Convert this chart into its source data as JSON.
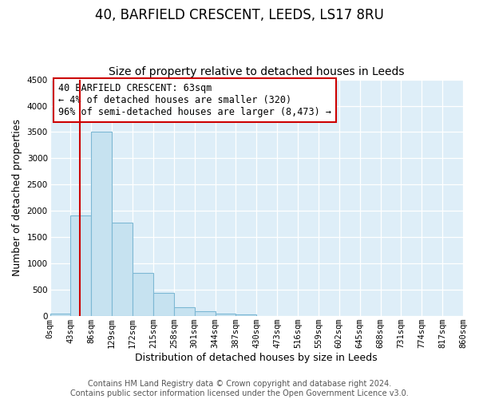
{
  "title": "40, BARFIELD CRESCENT, LEEDS, LS17 8RU",
  "subtitle": "Size of property relative to detached houses in Leeds",
  "xlabel": "Distribution of detached houses by size in Leeds",
  "ylabel": "Number of detached properties",
  "bin_edges": [
    0,
    43,
    86,
    129,
    172,
    215,
    258,
    301,
    344,
    387,
    430,
    473,
    516,
    559,
    602,
    645,
    688,
    731,
    774,
    817,
    860
  ],
  "bin_labels": [
    "0sqm",
    "43sqm",
    "86sqm",
    "129sqm",
    "172sqm",
    "215sqm",
    "258sqm",
    "301sqm",
    "344sqm",
    "387sqm",
    "430sqm",
    "473sqm",
    "516sqm",
    "559sqm",
    "602sqm",
    "645sqm",
    "688sqm",
    "731sqm",
    "774sqm",
    "817sqm",
    "860sqm"
  ],
  "counts": [
    50,
    1920,
    3500,
    1780,
    820,
    450,
    175,
    100,
    50,
    28,
    0,
    0,
    0,
    0,
    0,
    0,
    0,
    0,
    0,
    0
  ],
  "bar_color": "#c6e2f0",
  "bar_edge_color": "#7db8d4",
  "property_line_x": 63,
  "property_line_color": "#cc0000",
  "ylim": [
    0,
    4500
  ],
  "yticks": [
    0,
    500,
    1000,
    1500,
    2000,
    2500,
    3000,
    3500,
    4000,
    4500
  ],
  "annotation_title": "40 BARFIELD CRESCENT: 63sqm",
  "annotation_line1": "← 4% of detached houses are smaller (320)",
  "annotation_line2": "96% of semi-detached houses are larger (8,473) →",
  "footer_line1": "Contains HM Land Registry data © Crown copyright and database right 2024.",
  "footer_line2": "Contains public sector information licensed under the Open Government Licence v3.0.",
  "bg_color": "#deeef8",
  "fig_bg_color": "#ffffff",
  "title_fontsize": 12,
  "subtitle_fontsize": 10,
  "axis_label_fontsize": 9,
  "tick_fontsize": 7.5,
  "annotation_fontsize": 8.5,
  "footer_fontsize": 7
}
